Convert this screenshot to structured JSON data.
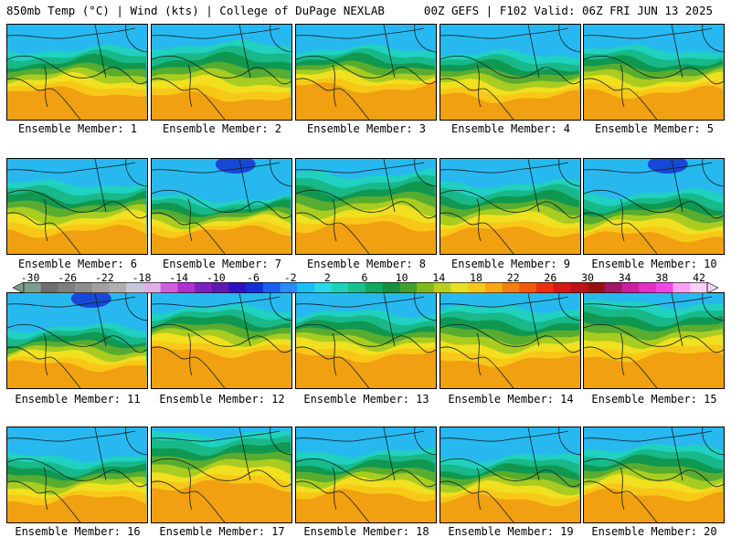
{
  "header": {
    "left": "850mb Temp (°C) | Wind (kts) | College of DuPage NEXLAB",
    "right": "00Z GEFS | F102 Valid: 06Z FRI JUN 13 2025"
  },
  "panels": [
    {
      "label": "Ensemble Member: 1",
      "cold_extent": 0.3,
      "warm_extent": 0.25
    },
    {
      "label": "Ensemble Member: 2",
      "cold_extent": 0.25,
      "warm_extent": 0.2
    },
    {
      "label": "Ensemble Member: 3",
      "cold_extent": 0.3,
      "warm_extent": 0.3
    },
    {
      "label": "Ensemble Member: 4",
      "cold_extent": 0.35,
      "warm_extent": 0.2
    },
    {
      "label": "Ensemble Member: 5",
      "cold_extent": 0.3,
      "warm_extent": 0.25
    },
    {
      "label": "Ensemble Member: 6",
      "cold_extent": 0.3,
      "warm_extent": 0.2
    },
    {
      "label": "Ensemble Member: 7",
      "cold_extent": 0.45,
      "warm_extent": 0.2
    },
    {
      "label": "Ensemble Member: 8",
      "cold_extent": 0.2,
      "warm_extent": 0.25
    },
    {
      "label": "Ensemble Member: 9",
      "cold_extent": 0.3,
      "warm_extent": 0.2
    },
    {
      "label": "Ensemble Member: 10",
      "cold_extent": 0.4,
      "warm_extent": 0.15
    },
    {
      "label": "Ensemble Member: 11",
      "cold_extent": 0.4,
      "warm_extent": 0.2
    },
    {
      "label": "Ensemble Member: 12",
      "cold_extent": 0.2,
      "warm_extent": 0.35
    },
    {
      "label": "Ensemble Member: 13",
      "cold_extent": 0.25,
      "warm_extent": 0.3
    },
    {
      "label": "Ensemble Member: 14",
      "cold_extent": 0.2,
      "warm_extent": 0.25
    },
    {
      "label": "Ensemble Member: 15",
      "cold_extent": 0.15,
      "warm_extent": 0.3
    },
    {
      "label": "Ensemble Member: 16",
      "cold_extent": 0.35,
      "warm_extent": 0.2
    },
    {
      "label": "Ensemble Member: 17",
      "cold_extent": 0.1,
      "warm_extent": 0.35
    },
    {
      "label": "Ensemble Member: 18",
      "cold_extent": 0.3,
      "warm_extent": 0.25
    },
    {
      "label": "Ensemble Member: 19",
      "cold_extent": 0.35,
      "warm_extent": 0.2
    },
    {
      "label": "Ensemble Member: 20",
      "cold_extent": 0.25,
      "warm_extent": 0.25
    }
  ],
  "colorbar": {
    "tick_labels": [
      "-30",
      "-26",
      "-22",
      "-18",
      "-14",
      "-10",
      "-6",
      "-2",
      "2",
      "6",
      "10",
      "14",
      "18",
      "22",
      "26",
      "30",
      "34",
      "38",
      "42"
    ],
    "colors": [
      "#7c9c8c",
      "#6e6e6e",
      "#7e7e7e",
      "#8e8e8e",
      "#a0a0a0",
      "#b0b0b0",
      "#c8c8dc",
      "#e0b0e8",
      "#d060e0",
      "#b030d0",
      "#8020c0",
      "#6018b0",
      "#3010c0",
      "#1030d8",
      "#1860f0",
      "#2a8cf4",
      "#18c0f8",
      "#28d8e8",
      "#20d0b8",
      "#18c090",
      "#10a860",
      "#189040",
      "#40a030",
      "#80b820",
      "#b8d020",
      "#e8e020",
      "#f8c818",
      "#f8a810",
      "#f08010",
      "#f05a10",
      "#e83010",
      "#d81818",
      "#b81418",
      "#981010",
      "#a01868",
      "#c820a0",
      "#e030c8",
      "#f048e8",
      "#f8a0f8",
      "#f8d0f8"
    ]
  },
  "map_colors": {
    "very_cold": "#1848d8",
    "cold": "#28b8f0",
    "cool": "#20d0c0",
    "mild_cool": "#18b888",
    "mild": "#109850",
    "mid": "#58ac30",
    "warm1": "#a8cc20",
    "warm2": "#f0e020",
    "warm3": "#f8c818",
    "hot": "#f0a010"
  }
}
